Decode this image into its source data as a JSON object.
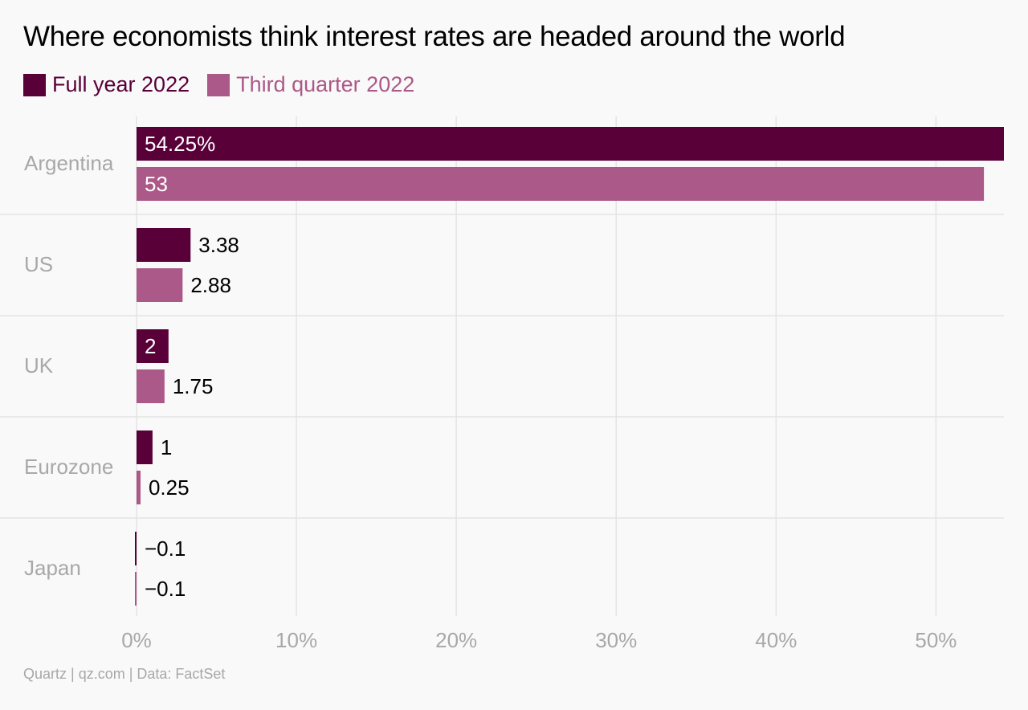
{
  "title": "Where economists think interest rates are headed around the world",
  "footer": "Quartz | qz.com | Data: FactSet",
  "colors": {
    "series1": "#590039",
    "series2": "#ab5988",
    "grid": "#e4e4e4",
    "category": "#a8a8a8",
    "label_dark": "#000000",
    "label_light": "#ffffff"
  },
  "chart_data": {
    "type": "bar",
    "orientation": "horizontal",
    "categories": [
      "Argentina",
      "US",
      "UK",
      "Eurozone",
      "Japan"
    ],
    "series": [
      {
        "name": "Full year 2022",
        "values": [
          54.25,
          3.38,
          2,
          1,
          -0.1
        ],
        "labels": [
          "54.25%",
          "3.38",
          "2",
          "1",
          "−0.1"
        ]
      },
      {
        "name": "Third quarter 2022",
        "values": [
          53,
          2.88,
          1.75,
          0.25,
          -0.1
        ],
        "labels": [
          "53",
          "2.88",
          "1.75",
          "0.25",
          "−0.1"
        ]
      }
    ],
    "xlim": [
      0,
      54.25
    ],
    "xticks": [
      0,
      10,
      20,
      30,
      40,
      50
    ],
    "xtick_labels": [
      "0%",
      "10%",
      "20%",
      "30%",
      "40%",
      "50%"
    ],
    "grid": true,
    "legend": "top-left"
  }
}
